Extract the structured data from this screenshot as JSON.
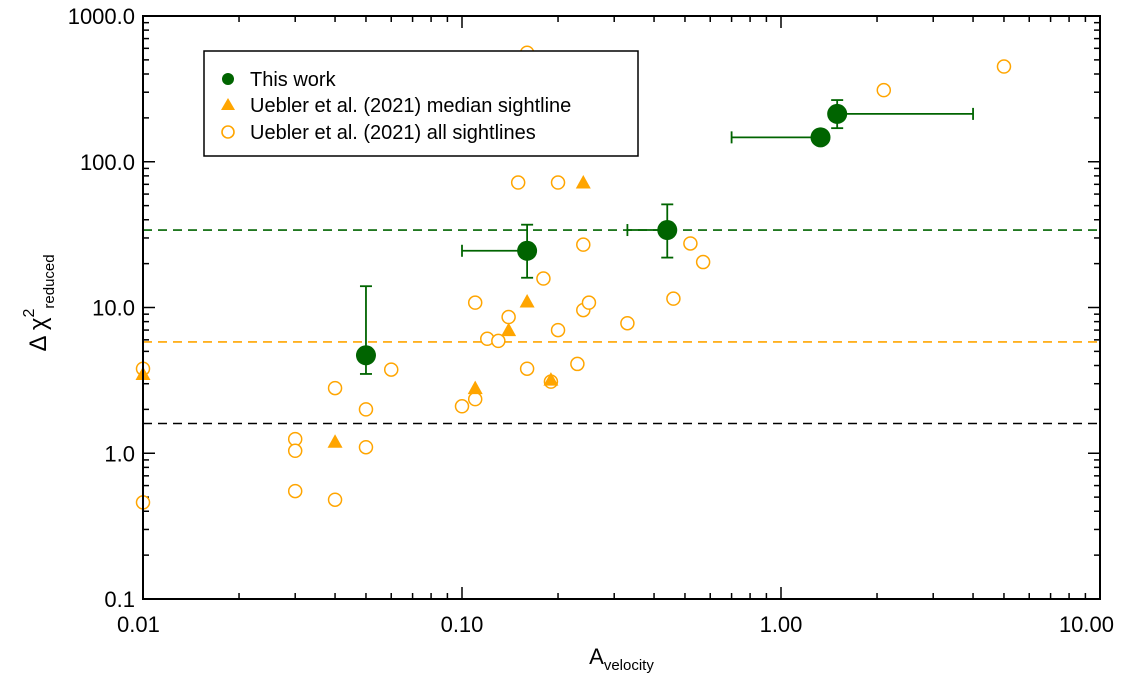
{
  "chart_data": {
    "type": "scatter",
    "title": "",
    "xlabel": {
      "main": "A",
      "sub": "velocity"
    },
    "ylabel": {
      "prefix": "Δ χ",
      "sup": "2",
      "sub": "reduced"
    },
    "xscale": "log",
    "yscale": "log",
    "xlim": [
      0.01,
      10
    ],
    "ylim": [
      0.1,
      1000
    ],
    "x_tick_labels": [
      "0.01",
      "0.10",
      "1.00",
      "10.00"
    ],
    "x_tick_values": [
      0.01,
      0.1,
      1,
      10
    ],
    "y_tick_labels": [
      "0.1",
      "1.0",
      "10.0",
      "100.0",
      "1000.0"
    ],
    "y_tick_values": [
      0.1,
      1,
      10,
      100,
      1000
    ],
    "legend_position": "top-left",
    "colors": {
      "this_work": "#006400",
      "uebler": "#ffa500",
      "threshold_black": "#000000"
    },
    "series": [
      {
        "name": "This work",
        "marker": "filled-circle",
        "color": "#006400",
        "points": [
          {
            "x": 0.05,
            "y": 4.7,
            "ylo": 3.5,
            "yhi": 14
          },
          {
            "x": 0.16,
            "y": 24.5,
            "xlo": 0.1,
            "ylo": 16,
            "yhi": 37
          },
          {
            "x": 0.44,
            "y": 34,
            "xlo": 0.33,
            "ylo": 22,
            "yhi": 51
          },
          {
            "x": 1.33,
            "y": 147,
            "xlo": 0.7
          },
          {
            "x": 1.5,
            "y": 213,
            "xhi": 4.0,
            "ylo": 170,
            "yhi": 265
          }
        ]
      },
      {
        "name": "Uebler et al. (2021) median sightline",
        "marker": "filled-triangle",
        "color": "#ffa500",
        "points": [
          {
            "x": 0.01,
            "y": 3.5
          },
          {
            "x": 0.04,
            "y": 1.2
          },
          {
            "x": 0.11,
            "y": 2.8
          },
          {
            "x": 0.14,
            "y": 7.0
          },
          {
            "x": 0.16,
            "y": 11.0
          },
          {
            "x": 0.19,
            "y": 3.2
          },
          {
            "x": 0.24,
            "y": 72
          }
        ]
      },
      {
        "name": "Uebler et al. (2021) all sightlines",
        "marker": "open-circle",
        "color": "#ffa500",
        "points": [
          {
            "x": 0.01,
            "y": 3.8
          },
          {
            "x": 0.01,
            "y": 0.46
          },
          {
            "x": 0.03,
            "y": 1.25
          },
          {
            "x": 0.03,
            "y": 1.04
          },
          {
            "x": 0.03,
            "y": 0.55
          },
          {
            "x": 0.04,
            "y": 2.8
          },
          {
            "x": 0.04,
            "y": 0.48
          },
          {
            "x": 0.05,
            "y": 2.0
          },
          {
            "x": 0.05,
            "y": 1.1
          },
          {
            "x": 0.06,
            "y": 3.75
          },
          {
            "x": 0.1,
            "y": 2.1
          },
          {
            "x": 0.11,
            "y": 10.8
          },
          {
            "x": 0.11,
            "y": 2.35
          },
          {
            "x": 0.12,
            "y": 6.1
          },
          {
            "x": 0.13,
            "y": 5.9
          },
          {
            "x": 0.14,
            "y": 8.6
          },
          {
            "x": 0.15,
            "y": 72
          },
          {
            "x": 0.16,
            "y": 3.8
          },
          {
            "x": 0.16,
            "y": 560
          },
          {
            "x": 0.18,
            "y": 15.8
          },
          {
            "x": 0.19,
            "y": 3.1
          },
          {
            "x": 0.2,
            "y": 72
          },
          {
            "x": 0.2,
            "y": 7.0
          },
          {
            "x": 0.23,
            "y": 4.1
          },
          {
            "x": 0.24,
            "y": 27
          },
          {
            "x": 0.24,
            "y": 9.6
          },
          {
            "x": 0.25,
            "y": 10.8
          },
          {
            "x": 0.33,
            "y": 7.8
          },
          {
            "x": 0.46,
            "y": 11.5
          },
          {
            "x": 0.52,
            "y": 27.5
          },
          {
            "x": 0.57,
            "y": 20.5
          },
          {
            "x": 2.1,
            "y": 310
          },
          {
            "x": 5.0,
            "y": 450
          }
        ]
      }
    ],
    "reference_lines": [
      {
        "y": 34,
        "style": "dashed",
        "color": "#006400"
      },
      {
        "y": 5.8,
        "style": "dashed",
        "color": "#ffa500"
      },
      {
        "y": 1.6,
        "style": "dashed",
        "color": "#000000"
      }
    ]
  }
}
